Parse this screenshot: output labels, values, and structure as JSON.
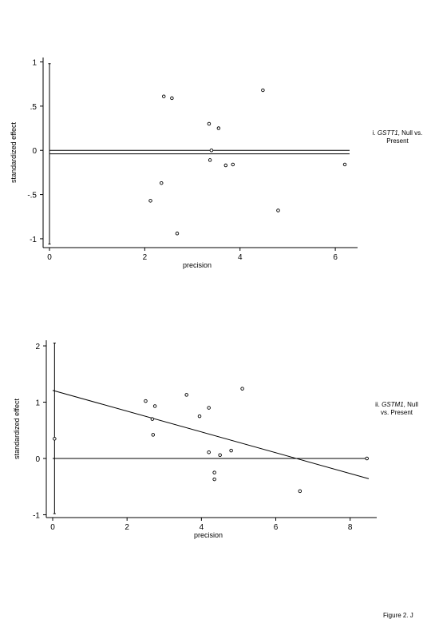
{
  "figure_label": "Figure 2. J",
  "chart_data": [
    {
      "type": "scatter",
      "xlabel": "precision",
      "ylabel": "standardized effect",
      "xlim": [
        0,
        6.3
      ],
      "ylim": [
        -1.1,
        1.05
      ],
      "x_ticks": [
        0,
        2,
        4,
        6
      ],
      "y_ticks": [
        1,
        0.5,
        0,
        -0.5,
        -1
      ],
      "y_tick_labels": [
        "1",
        ".5",
        "0",
        "-.5",
        "-1"
      ],
      "caption": {
        "prefix": "i. ",
        "gene": "GSTT1",
        "suffix": ", Null vs. Present"
      },
      "points": [
        {
          "x": 2.4,
          "y": 0.61
        },
        {
          "x": 2.57,
          "y": 0.59
        },
        {
          "x": 3.35,
          "y": 0.3
        },
        {
          "x": 3.55,
          "y": 0.25
        },
        {
          "x": 4.48,
          "y": 0.68
        },
        {
          "x": 3.4,
          "y": 0.0
        },
        {
          "x": 3.37,
          "y": -0.11
        },
        {
          "x": 3.7,
          "y": -0.17
        },
        {
          "x": 3.85,
          "y": -0.16
        },
        {
          "x": 6.2,
          "y": -0.16
        },
        {
          "x": 2.35,
          "y": -0.37
        },
        {
          "x": 2.12,
          "y": -0.57
        },
        {
          "x": 4.8,
          "y": -0.68
        },
        {
          "x": 2.68,
          "y": -0.94
        }
      ],
      "lines": [
        {
          "x": [
            0,
            6.3
          ],
          "y": [
            0,
            0
          ]
        },
        {
          "x": [
            0,
            6.3
          ],
          "y": [
            -0.04,
            -0.04
          ]
        }
      ],
      "error_bar": {
        "x": 0.0,
        "y_low": -1.06,
        "y_high": 0.98
      }
    },
    {
      "type": "scatter",
      "xlabel": "precision",
      "ylabel": "standardized effect",
      "xlim": [
        0,
        8.5
      ],
      "ylim": [
        -1.05,
        2.1
      ],
      "x_ticks": [
        0,
        2,
        4,
        6,
        8
      ],
      "y_ticks": [
        2,
        1,
        0,
        -1
      ],
      "y_tick_labels": [
        "2",
        "1",
        "0",
        "-1"
      ],
      "caption": {
        "prefix": "ii. ",
        "gene": "GSTM1",
        "suffix": ", Null vs. Present"
      },
      "points": [
        {
          "x": 2.5,
          "y": 1.02
        },
        {
          "x": 2.75,
          "y": 0.93
        },
        {
          "x": 2.68,
          "y": 0.7
        },
        {
          "x": 2.7,
          "y": 0.42
        },
        {
          "x": 3.6,
          "y": 1.13
        },
        {
          "x": 3.95,
          "y": 0.75
        },
        {
          "x": 4.2,
          "y": 0.9
        },
        {
          "x": 5.1,
          "y": 1.24
        },
        {
          "x": 4.2,
          "y": 0.11
        },
        {
          "x": 4.5,
          "y": 0.06
        },
        {
          "x": 4.8,
          "y": 0.14
        },
        {
          "x": 4.35,
          "y": -0.25
        },
        {
          "x": 4.35,
          "y": -0.37
        },
        {
          "x": 6.65,
          "y": -0.58
        },
        {
          "x": 8.45,
          "y": 0.0
        },
        {
          "x": 0.05,
          "y": 0.35
        }
      ],
      "lines": [
        {
          "x": [
            0,
            8.5
          ],
          "y": [
            0,
            0
          ]
        },
        {
          "x": [
            0,
            8.5
          ],
          "y": [
            1.21,
            -0.36
          ]
        }
      ],
      "error_bar": {
        "x": 0.05,
        "y_low": -0.98,
        "y_high": 2.05
      }
    }
  ]
}
